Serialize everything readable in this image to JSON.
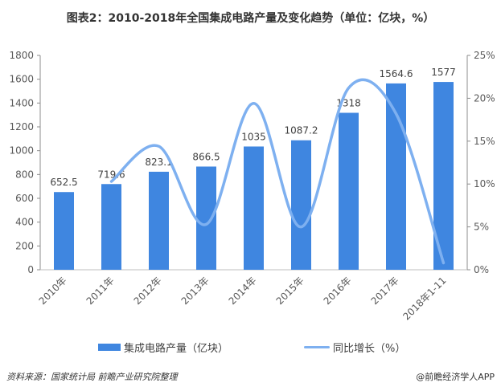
{
  "title": "图表2：2010-2018年全国集成电路产量及变化趋势（单位：亿块，%）",
  "chart_data": {
    "type": "bar+line",
    "categories": [
      "2010年",
      "2011年",
      "2012年",
      "2013年",
      "2014年",
      "2015年",
      "2016年",
      "2017年",
      "2018年1-11"
    ],
    "series": [
      {
        "name": "集成电路产量（亿块）",
        "type": "bar",
        "axis": "left",
        "color": "#3F86E0",
        "values": [
          652.5,
          719.6,
          823.1,
          866.5,
          1035,
          1087.2,
          1318,
          1564.6,
          1577
        ],
        "labels": [
          "652.5",
          "719.6",
          "823.1",
          "866.5",
          "1035",
          "1087.2",
          "1318",
          "1564.6",
          "1577"
        ]
      },
      {
        "name": "同比增长（%）",
        "type": "line",
        "axis": "right",
        "color": "#7EB0F0",
        "smooth": true,
        "values": [
          null,
          10.3,
          14.4,
          5.3,
          19.4,
          5.0,
          21.2,
          18.2,
          0.8
        ]
      }
    ],
    "left_axis": {
      "ylim": [
        0,
        1800
      ],
      "ticks": [
        "0",
        "200",
        "400",
        "600",
        "800",
        "1000",
        "1200",
        "1400",
        "1600",
        "1800"
      ]
    },
    "right_axis": {
      "ylim": [
        0,
        25
      ],
      "ticks": [
        "0%",
        "5%",
        "10%",
        "15%",
        "20%",
        "25%"
      ]
    },
    "grid": false,
    "legend": "bottom"
  },
  "legend": {
    "bar": "集成电路产量（亿块）",
    "line": "同比增长（%）"
  },
  "source": "资料来源：国家统计局  前瞻产业研究院整理",
  "brand": "@前瞻经济学人APP"
}
